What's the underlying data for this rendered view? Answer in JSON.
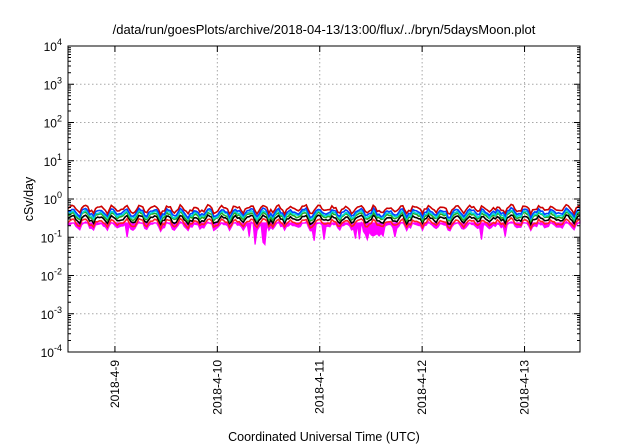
{
  "chart_data": {
    "type": "area",
    "title": "/data/run/goesPlots/archive/2018-04-13/13:00/flux/../bryn/5daysMoon.plot",
    "xlabel": "Coordinated Universal Time (UTC)",
    "ylabel": "cSv/day",
    "yscale": "log",
    "ylim": [
      0.0001,
      10000
    ],
    "xlim_days": [
      "2018-04-08T13:00",
      "2018-04-13T13:00"
    ],
    "grid": true,
    "y_ticks": [
      {
        "value": 0.0001,
        "base": "10",
        "exp": "-4"
      },
      {
        "value": 0.001,
        "base": "10",
        "exp": "-3"
      },
      {
        "value": 0.01,
        "base": "10",
        "exp": "-2"
      },
      {
        "value": 0.1,
        "base": "10",
        "exp": "-1"
      },
      {
        "value": 1,
        "base": "10",
        "exp": "0"
      },
      {
        "value": 10,
        "base": "10",
        "exp": "1"
      },
      {
        "value": 100,
        "base": "10",
        "exp": "2"
      },
      {
        "value": 1000,
        "base": "10",
        "exp": "3"
      },
      {
        "value": 10000,
        "base": "10",
        "exp": "4"
      }
    ],
    "x_ticks": [
      {
        "label": "2018-4-9",
        "date": "2018-04-09"
      },
      {
        "label": "2018-4-10",
        "date": "2018-04-10"
      },
      {
        "label": "2018-4-11",
        "date": "2018-04-11"
      },
      {
        "label": "2018-4-12",
        "date": "2018-04-12"
      },
      {
        "label": "2018-4-13",
        "date": "2018-04-13"
      }
    ],
    "series": [
      {
        "color": "#ff00ff",
        "level": 0.2,
        "style": "filled",
        "dips": true
      },
      {
        "color": "#ff2222",
        "level": 0.24
      },
      {
        "color": "#000000",
        "level": 0.3
      },
      {
        "color": "#22aa22",
        "level": 0.36
      },
      {
        "color": "#00d8d8",
        "level": 0.4
      },
      {
        "color": "#0044ff",
        "level": 0.45
      },
      {
        "color": "#cc0000",
        "level": 0.55
      }
    ]
  }
}
